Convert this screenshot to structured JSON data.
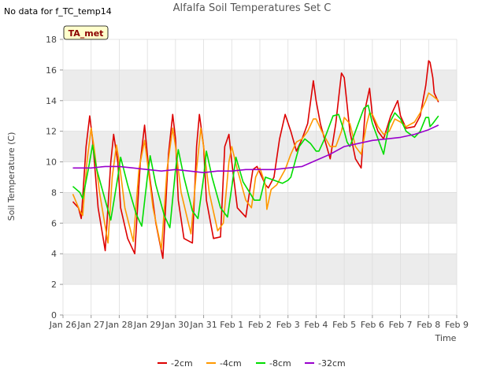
{
  "no_data_note": "No data for f_TC_temp14",
  "badge": "TA_met",
  "chart_data": {
    "type": "line",
    "title": "Alfalfa Soil Temperatures Set C",
    "xlabel": "Time",
    "ylabel": "Soil Temperature (C)",
    "ylim": [
      0,
      18
    ],
    "yticks": [
      0,
      2,
      4,
      6,
      8,
      10,
      12,
      14,
      16,
      18
    ],
    "xlim": [
      0,
      14
    ],
    "xticks": [
      0,
      1,
      2,
      3,
      4,
      5,
      6,
      7,
      8,
      9,
      10,
      11,
      12,
      13,
      14
    ],
    "xtick_labels": [
      "Jan 26",
      "Jan 27",
      "Jan 28",
      "Jan 29",
      "Jan 30",
      "Jan 31",
      "Feb 1",
      "Feb 2",
      "Feb 3",
      "Feb 4",
      "Feb 5",
      "Feb 6",
      "Feb 7",
      "Feb 8",
      "Feb 9"
    ],
    "grid": true,
    "legend_position": "bottom",
    "series": [
      {
        "name": "-2cm",
        "color": "#dd0000",
        "x": [
          0.35,
          0.55,
          0.65,
          0.82,
          0.95,
          1.05,
          1.25,
          1.5,
          1.7,
          1.8,
          1.95,
          2.05,
          2.3,
          2.55,
          2.75,
          2.9,
          3.05,
          3.3,
          3.55,
          3.75,
          3.9,
          4.0,
          4.1,
          4.3,
          4.6,
          4.75,
          4.85,
          5.0,
          5.1,
          5.35,
          5.6,
          5.75,
          5.9,
          6.0,
          6.2,
          6.5,
          6.75,
          6.9,
          7.0,
          7.2,
          7.3,
          7.5,
          7.7,
          7.9,
          8.1,
          8.3,
          8.5,
          8.7,
          8.9,
          9.0,
          9.15,
          9.3,
          9.5,
          9.7,
          9.9,
          10.0,
          10.2,
          10.4,
          10.6,
          10.75,
          10.9,
          11.0,
          11.2,
          11.4,
          11.65,
          11.9,
          12.0,
          12.2,
          12.5,
          12.7,
          12.9,
          13.0,
          13.05,
          13.15,
          13.2,
          13.35
        ],
        "values": [
          7.4,
          7.0,
          6.3,
          11.0,
          13.0,
          11.5,
          7.0,
          4.2,
          10.0,
          11.8,
          10.0,
          7.0,
          5.0,
          4.0,
          10.0,
          12.4,
          9.5,
          6.0,
          3.7,
          10.5,
          13.1,
          11.5,
          7.5,
          5.0,
          4.7,
          11.0,
          13.1,
          11.0,
          7.5,
          5.0,
          5.1,
          11.0,
          11.8,
          10.0,
          7.0,
          6.4,
          9.5,
          9.7,
          9.3,
          8.5,
          8.3,
          9.0,
          11.5,
          13.1,
          12.0,
          10.7,
          11.5,
          12.5,
          15.3,
          14.0,
          12.5,
          11.5,
          10.2,
          12.5,
          15.8,
          15.5,
          12.0,
          10.2,
          9.6,
          13.5,
          14.8,
          13.0,
          12.0,
          11.5,
          13.0,
          14.0,
          13.0,
          12.2,
          12.3,
          13.0,
          15.0,
          16.6,
          16.5,
          15.5,
          14.5,
          13.9
        ]
      },
      {
        "name": "-4cm",
        "color": "#ff9900",
        "x": [
          0.35,
          0.6,
          0.7,
          0.85,
          1.0,
          1.1,
          1.3,
          1.6,
          1.75,
          1.9,
          2.0,
          2.2,
          2.5,
          2.7,
          2.9,
          3.0,
          3.2,
          3.5,
          3.7,
          3.9,
          4.0,
          4.2,
          4.55,
          4.75,
          4.9,
          5.0,
          5.2,
          5.5,
          5.7,
          5.9,
          6.0,
          6.2,
          6.5,
          6.7,
          6.85,
          7.0,
          7.2,
          7.25,
          7.4,
          7.6,
          7.9,
          8.1,
          8.3,
          8.5,
          8.7,
          8.9,
          9.0,
          9.2,
          9.5,
          9.7,
          9.9,
          10.0,
          10.2,
          10.4,
          10.6,
          10.8,
          10.9,
          11.0,
          11.2,
          11.4,
          11.6,
          11.8,
          12.0,
          12.2,
          12.5,
          12.7,
          12.9,
          13.0,
          13.15,
          13.35
        ],
        "values": [
          7.9,
          6.8,
          6.5,
          10.0,
          12.2,
          11.0,
          8.0,
          4.7,
          9.0,
          11.1,
          10.0,
          7.0,
          4.8,
          9.5,
          11.4,
          10.0,
          7.0,
          4.3,
          9.5,
          12.2,
          11.0,
          8.0,
          5.3,
          9.5,
          12.2,
          11.0,
          8.0,
          5.5,
          6.0,
          10.0,
          11.0,
          9.5,
          7.5,
          7.0,
          9.0,
          9.6,
          8.5,
          6.9,
          8.2,
          8.5,
          9.5,
          10.5,
          11.3,
          11.5,
          12.0,
          12.8,
          12.8,
          12.0,
          11.0,
          11.0,
          12.0,
          12.9,
          12.5,
          11.0,
          10.5,
          12.5,
          13.2,
          13.1,
          12.3,
          11.8,
          12.0,
          12.8,
          12.6,
          12.3,
          12.6,
          13.2,
          14.0,
          14.5,
          14.3,
          14.0
        ]
      },
      {
        "name": "-8cm",
        "color": "#00dd00",
        "x": [
          0.35,
          0.6,
          0.7,
          0.9,
          1.05,
          1.2,
          1.5,
          1.7,
          1.95,
          2.05,
          2.3,
          2.6,
          2.8,
          3.0,
          3.1,
          3.3,
          3.6,
          3.8,
          4.0,
          4.1,
          4.3,
          4.6,
          4.8,
          5.0,
          5.1,
          5.3,
          5.6,
          5.85,
          6.05,
          6.15,
          6.4,
          6.8,
          7.0,
          7.2,
          7.5,
          7.8,
          8.0,
          8.1,
          8.4,
          8.6,
          8.8,
          9.0,
          9.1,
          9.3,
          9.6,
          9.8,
          10.0,
          10.1,
          10.2,
          10.4,
          10.7,
          10.85,
          11.0,
          11.2,
          11.4,
          11.6,
          11.8,
          12.0,
          12.2,
          12.5,
          12.7,
          12.9,
          13.0,
          13.05,
          13.15,
          13.35
        ],
        "values": [
          8.4,
          8.0,
          7.6,
          9.5,
          11.1,
          9.5,
          7.5,
          6.2,
          9.0,
          10.3,
          8.5,
          6.6,
          5.8,
          9.0,
          10.4,
          8.5,
          6.5,
          5.7,
          9.5,
          10.8,
          9.0,
          6.8,
          6.3,
          9.0,
          10.7,
          9.0,
          7.0,
          6.4,
          9.0,
          10.3,
          8.7,
          7.5,
          7.5,
          9.0,
          8.8,
          8.6,
          8.8,
          9.0,
          11.0,
          11.5,
          11.2,
          10.7,
          10.7,
          11.5,
          13.0,
          13.1,
          12.0,
          11.3,
          11.0,
          12.0,
          13.5,
          13.7,
          12.5,
          11.5,
          10.5,
          12.5,
          13.2,
          12.8,
          12.0,
          11.6,
          12.0,
          12.9,
          12.9,
          12.3,
          12.5,
          13.0
        ]
      },
      {
        "name": "-32cm",
        "color": "#9900cc",
        "x": [
          0.35,
          1.0,
          1.5,
          2.0,
          2.5,
          3.0,
          3.5,
          4.0,
          4.5,
          5.0,
          5.5,
          6.0,
          6.5,
          7.0,
          7.5,
          8.0,
          8.5,
          9.0,
          9.5,
          10.0,
          10.5,
          11.0,
          11.5,
          12.0,
          12.5,
          13.0,
          13.35
        ],
        "values": [
          9.6,
          9.6,
          9.7,
          9.7,
          9.6,
          9.5,
          9.4,
          9.5,
          9.4,
          9.3,
          9.4,
          9.4,
          9.5,
          9.5,
          9.5,
          9.6,
          9.7,
          10.1,
          10.5,
          11.0,
          11.2,
          11.4,
          11.5,
          11.6,
          11.8,
          12.1,
          12.4
        ]
      }
    ]
  }
}
